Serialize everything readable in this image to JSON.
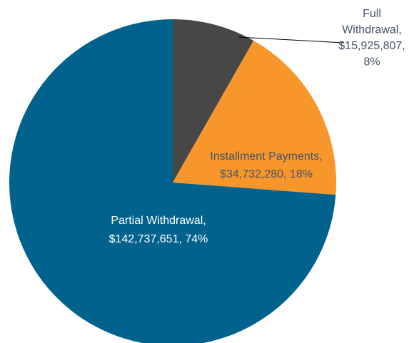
{
  "chart_data": {
    "type": "pie",
    "title": "",
    "slices": [
      {
        "name": "Full Withdrawal",
        "value": 15925807,
        "value_label": "$15,925,807",
        "percent": 8,
        "percent_label": "8%",
        "color": "#474747",
        "label_color": "#44546a",
        "label_lines": [
          "Full",
          "Withdrawal,",
          "$15,925,807,",
          "8%"
        ]
      },
      {
        "name": "Installment Payments",
        "value": 34732280,
        "value_label": "$34,732,280",
        "percent": 18,
        "percent_label": "18%",
        "color": "#f7962b",
        "label_color": "#44546a",
        "label_lines": [
          "Installment Payments,",
          "$34,732,280, 18%"
        ]
      },
      {
        "name": "Partial Withdrawal",
        "value": 142737651,
        "value_label": "$142,737,651",
        "percent": 74,
        "percent_label": "74%",
        "color": "#00628d",
        "label_color": "#ffffff",
        "label_lines": [
          "Partial Withdrawal,",
          "$142,737,651, 74%"
        ]
      }
    ],
    "start_angle": "12 o'clock",
    "direction": "clockwise",
    "legend": "none",
    "leader_line_color": "#000000"
  }
}
